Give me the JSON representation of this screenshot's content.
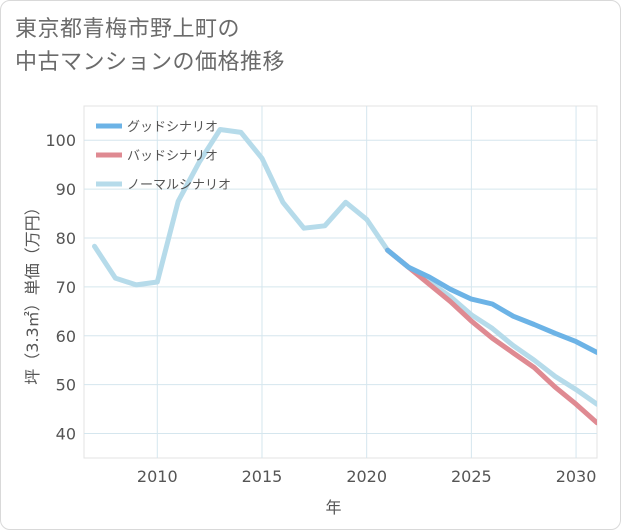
{
  "title_lines": [
    "東京都青梅市野上町の",
    "中古マンションの価格推移"
  ],
  "chart_data": {
    "type": "line",
    "xlabel": "年",
    "ylabel": "坪（3.3㎡）単価（万円）",
    "xlim": [
      2006.5,
      2031
    ],
    "ylim": [
      35,
      107
    ],
    "x_ticks": [
      2010,
      2015,
      2020,
      2025,
      2030
    ],
    "y_ticks": [
      40,
      50,
      60,
      70,
      80,
      90,
      100
    ],
    "grid": true,
    "legend_position": "top-left",
    "series": [
      {
        "name": "グッドシナリオ",
        "color": "#6cb3e6",
        "x": [
          2021,
          2022,
          2023,
          2024,
          2025,
          2026,
          2027,
          2028,
          2029,
          2030,
          2031
        ],
        "y": [
          77.5,
          74,
          72,
          69.5,
          67.5,
          66.5,
          64,
          62.3,
          60.5,
          58.8,
          56.6
        ]
      },
      {
        "name": "バッドシナリオ",
        "color": "#df8a92",
        "x": [
          2021,
          2022,
          2023,
          2024,
          2025,
          2026,
          2027,
          2028,
          2029,
          2030,
          2031
        ],
        "y": [
          77.5,
          74,
          70.5,
          67,
          63,
          59.5,
          56.5,
          53.5,
          49.5,
          46,
          42.2
        ]
      },
      {
        "name": "ノーマルシナリオ",
        "color": "#b6dbea",
        "x": [
          2007,
          2008,
          2009,
          2010,
          2011,
          2012,
          2013,
          2014,
          2015,
          2016,
          2017,
          2018,
          2019,
          2020,
          2021,
          2022,
          2023,
          2024,
          2025,
          2026,
          2027,
          2028,
          2029,
          2030,
          2031
        ],
        "y": [
          78.3,
          71.8,
          70.4,
          71,
          87.5,
          95.5,
          102.2,
          101.6,
          96.3,
          87.3,
          82,
          82.5,
          87.3,
          83.8,
          77.5,
          74,
          71,
          68,
          64.3,
          61.5,
          58,
          55,
          51.7,
          49,
          46
        ]
      }
    ]
  }
}
